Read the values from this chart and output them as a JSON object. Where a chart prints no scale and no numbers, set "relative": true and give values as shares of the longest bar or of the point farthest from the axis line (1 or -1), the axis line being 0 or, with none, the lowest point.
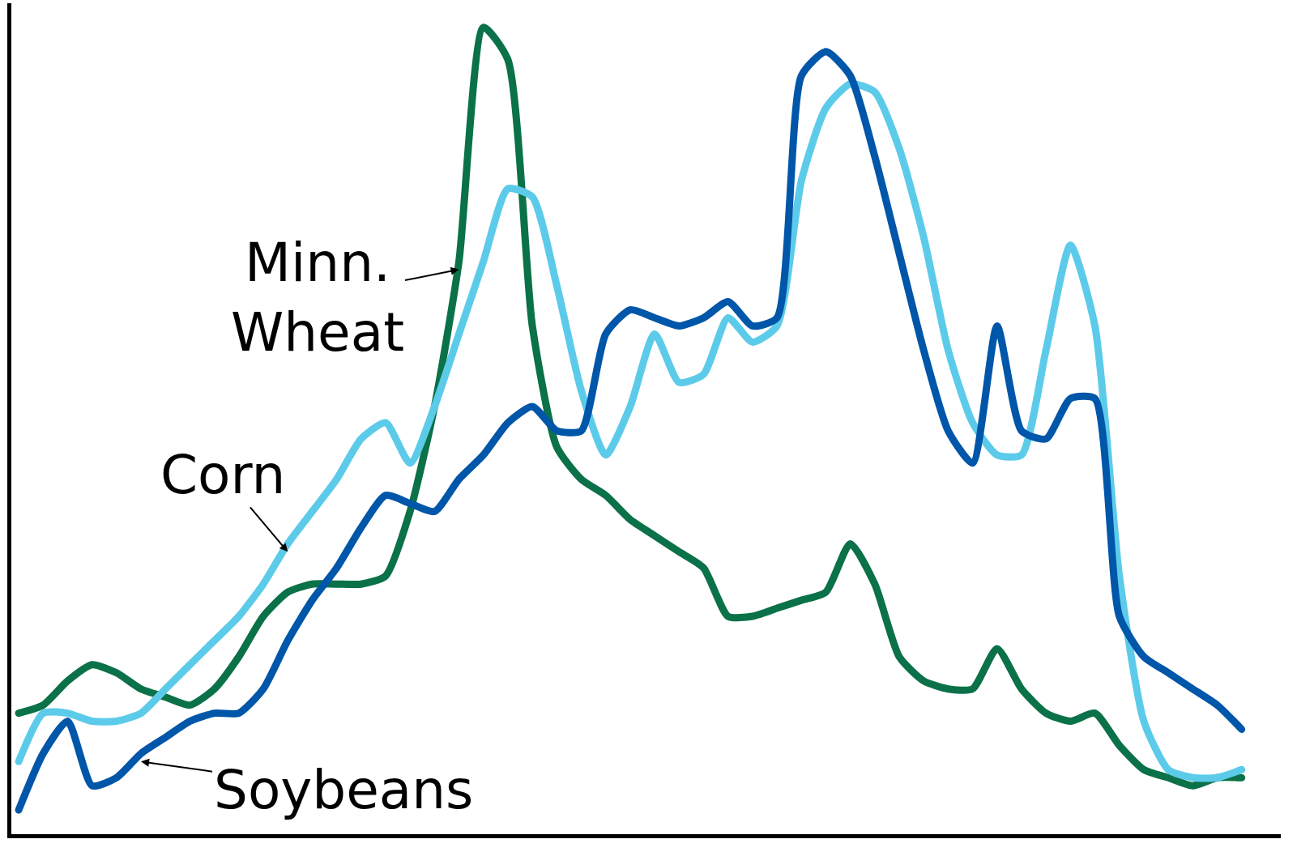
{
  "chart_data": {
    "type": "line",
    "relative": true,
    "legend": false,
    "line_style": "solid",
    "categories": [
      null,
      null,
      null,
      null,
      null,
      null,
      null,
      null,
      null,
      null,
      null,
      null,
      null,
      null,
      null,
      null,
      null,
      null,
      null,
      null,
      null,
      null,
      null,
      null,
      null,
      null,
      null,
      null,
      null,
      null,
      null,
      null,
      null,
      null,
      null,
      null,
      null,
      null,
      null,
      null,
      null,
      null,
      null,
      null,
      null,
      null,
      null,
      null,
      null,
      null,
      null
    ],
    "series": [
      {
        "name": "Minn.\nWheat",
        "color": "#0b7148",
        "values": [
          0.15,
          0.16,
          0.19,
          0.21,
          0.2,
          0.18,
          0.17,
          0.16,
          0.18,
          0.22,
          0.27,
          0.3,
          0.31,
          0.31,
          0.31,
          0.32,
          0.4,
          0.53,
          0.71,
          1.0,
          0.96,
          0.63,
          0.48,
          0.44,
          0.42,
          0.39,
          0.37,
          0.35,
          0.33,
          0.27,
          0.27,
          0.28,
          0.29,
          0.3,
          0.36,
          0.31,
          0.22,
          0.19,
          0.18,
          0.18,
          0.23,
          0.18,
          0.15,
          0.14,
          0.15,
          0.11,
          0.08,
          0.07,
          0.06,
          0.07,
          0.07
        ]
      },
      {
        "name": "Corn",
        "color": "#5ccbea",
        "values": [
          0.09,
          0.15,
          0.15,
          0.14,
          0.14,
          0.15,
          0.18,
          0.21,
          0.24,
          0.27,
          0.31,
          0.36,
          0.4,
          0.44,
          0.49,
          0.51,
          0.46,
          0.53,
          0.62,
          0.71,
          0.8,
          0.79,
          0.68,
          0.55,
          0.47,
          0.53,
          0.62,
          0.56,
          0.57,
          0.64,
          0.61,
          0.63,
          0.81,
          0.9,
          0.93,
          0.92,
          0.85,
          0.74,
          0.6,
          0.51,
          0.47,
          0.47,
          0.6,
          0.73,
          0.63,
          0.32,
          0.14,
          0.08,
          0.07,
          0.07,
          0.08
        ]
      },
      {
        "name": "Soybeans",
        "color": "#0056a8",
        "values": [
          0.03,
          0.1,
          0.14,
          0.06,
          0.07,
          0.1,
          0.12,
          0.14,
          0.15,
          0.15,
          0.18,
          0.24,
          0.29,
          0.33,
          0.38,
          0.42,
          0.41,
          0.4,
          0.44,
          0.47,
          0.51,
          0.53,
          0.5,
          0.5,
          0.62,
          0.65,
          0.64,
          0.63,
          0.64,
          0.66,
          0.63,
          0.64,
          0.94,
          0.97,
          0.94,
          0.84,
          0.72,
          0.6,
          0.5,
          0.46,
          0.63,
          0.5,
          0.49,
          0.54,
          0.54,
          0.27,
          0.22,
          0.2,
          0.18,
          0.16,
          0.13
        ]
      }
    ]
  }
}
